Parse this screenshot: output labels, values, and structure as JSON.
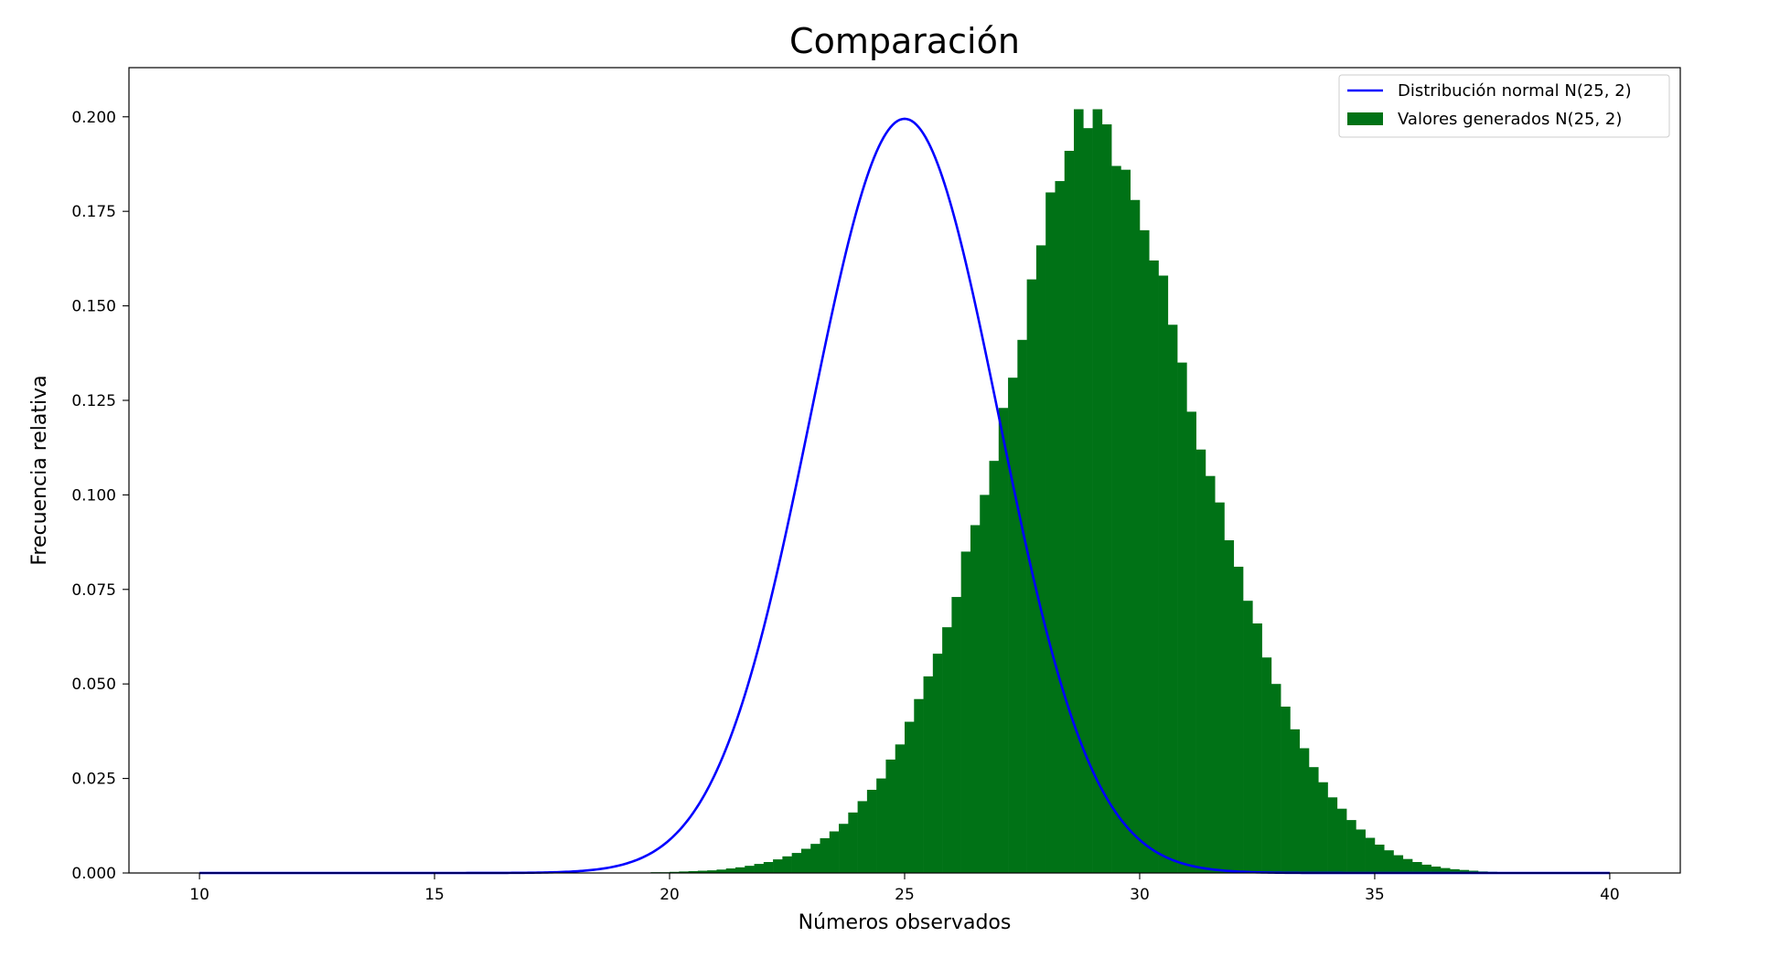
{
  "chart_data": {
    "type": "bar",
    "title": "Comparación",
    "xlabel": "Números observados",
    "ylabel": "Frecuencia relativa",
    "xlim": [
      8.5,
      41.5
    ],
    "ylim": [
      0,
      0.213
    ],
    "xticks": [
      10,
      15,
      20,
      25,
      30,
      35,
      40
    ],
    "xtick_labels": [
      "10",
      "15",
      "20",
      "25",
      "30",
      "35",
      "40"
    ],
    "yticks": [
      0.0,
      0.025,
      0.05,
      0.075,
      0.1,
      0.125,
      0.15,
      0.175,
      0.2
    ],
    "ytick_labels": [
      "0.000",
      "0.025",
      "0.050",
      "0.075",
      "0.100",
      "0.125",
      "0.150",
      "0.175",
      "0.200"
    ],
    "grid": false,
    "legend_position": "top-right",
    "colors": {
      "line": "#0000ff",
      "bars": "#007216"
    },
    "series": [
      {
        "name": "Distribución normal N(25, 2)",
        "kind": "line",
        "mean": 25,
        "sd": 2,
        "x_range": [
          10,
          40
        ]
      },
      {
        "name": "Valores generados N(25, 2)",
        "kind": "histogram",
        "bin_edges_start": 10,
        "bin_width": 0.2,
        "values": [
          0,
          0,
          0,
          0,
          0,
          0,
          0,
          0,
          0,
          0,
          0,
          0,
          0,
          0,
          0,
          0,
          0,
          0,
          0,
          0,
          0,
          0,
          0,
          0,
          0,
          0,
          0,
          0,
          0,
          0,
          0,
          0,
          0,
          0,
          0,
          0,
          0,
          0,
          0,
          0,
          0,
          0,
          0,
          0,
          0,
          0.0001,
          0.0001,
          0.0001,
          0.0002,
          0.0002,
          0.0003,
          0.0004,
          0.0005,
          0.0006,
          0.0007,
          0.0009,
          0.0012,
          0.0015,
          0.0019,
          0.0024,
          0.0029,
          0.0036,
          0.0044,
          0.0053,
          0.0064,
          0.0077,
          0.0092,
          0.011,
          0.013,
          0.016,
          0.019,
          0.022,
          0.025,
          0.03,
          0.034,
          0.04,
          0.046,
          0.052,
          0.058,
          0.065,
          0.073,
          0.085,
          0.092,
          0.1,
          0.109,
          0.123,
          0.131,
          0.141,
          0.157,
          0.166,
          0.18,
          0.183,
          0.191,
          0.202,
          0.197,
          0.202,
          0.198,
          0.187,
          0.186,
          0.178,
          0.17,
          0.162,
          0.158,
          0.145,
          0.135,
          0.122,
          0.112,
          0.105,
          0.098,
          0.088,
          0.081,
          0.072,
          0.066,
          0.057,
          0.05,
          0.044,
          0.038,
          0.033,
          0.028,
          0.024,
          0.02,
          0.017,
          0.014,
          0.0115,
          0.0093,
          0.0075,
          0.006,
          0.0047,
          0.0037,
          0.0029,
          0.0022,
          0.0017,
          0.0013,
          0.001,
          0.0008,
          0.0006,
          0.0004,
          0.0003,
          0.0002,
          0.0002,
          0.0001,
          0.0001,
          0.0001,
          0,
          0,
          0,
          0,
          0,
          0,
          0,
          0,
          0,
          0,
          0,
          0,
          0,
          0,
          0,
          0,
          0,
          0,
          0,
          0,
          0,
          0,
          0,
          0,
          0,
          0,
          0,
          0,
          0,
          0,
          0,
          0,
          0,
          0,
          0,
          0,
          0,
          0,
          0,
          0,
          0,
          0,
          0,
          0,
          0,
          0,
          0,
          0,
          0,
          0,
          0
        ]
      }
    ]
  }
}
